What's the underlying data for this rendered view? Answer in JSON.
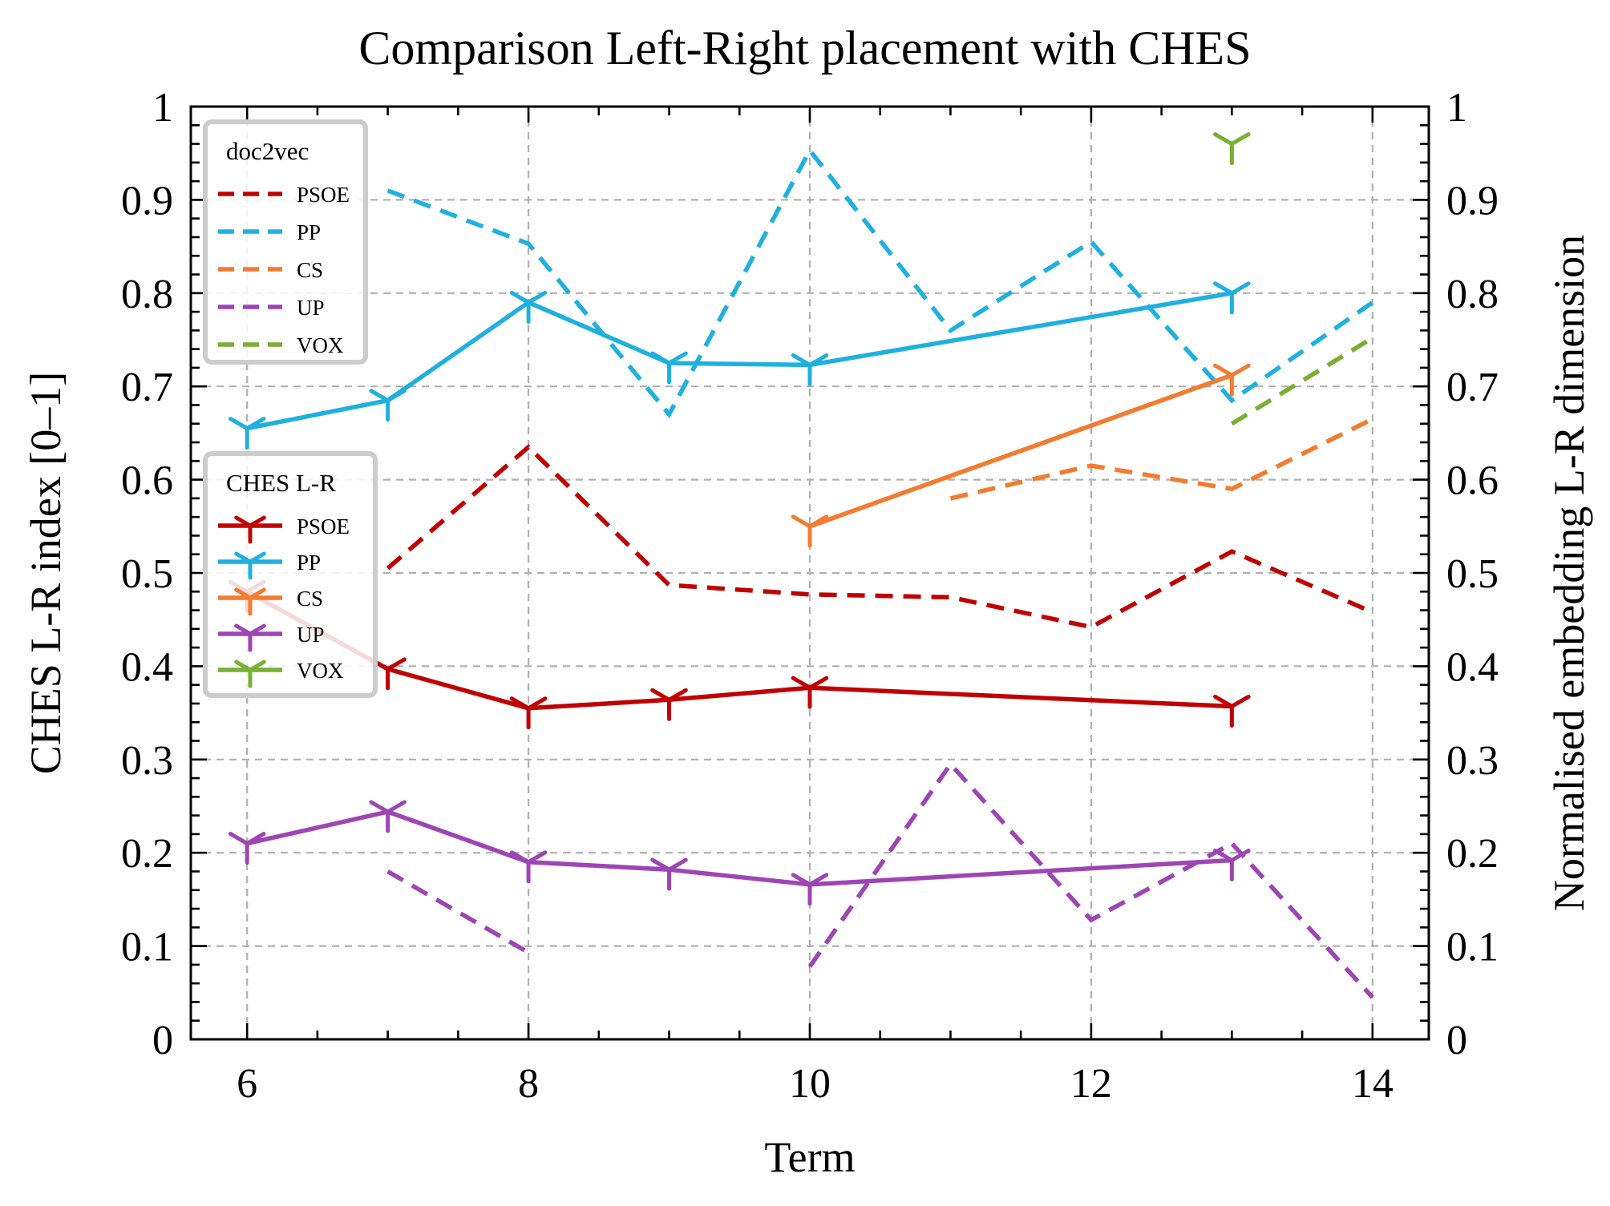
{
  "chart_data": {
    "type": "line",
    "title": "Comparison Left-Right placement with CHES",
    "xlabel": "Term",
    "ylabel": "CHES L-R index [0–1]",
    "ylabel_right": "Normalised embedding L-R dimension",
    "xlim": [
      5.6,
      14.4
    ],
    "ylim": [
      0,
      1
    ],
    "ylim_right": [
      0,
      1
    ],
    "x_ticks": [
      6,
      8,
      10,
      12,
      14
    ],
    "y_ticks": [
      0,
      0.1,
      0.2,
      0.3,
      0.4,
      0.5,
      0.6,
      0.7,
      0.8,
      0.9,
      1
    ],
    "y_tick_labels": [
      "0",
      "0.1",
      "0.2",
      "0.3",
      "0.4",
      "0.5",
      "0.6",
      "0.7",
      "0.8",
      "0.9",
      "1"
    ],
    "x_tick_labels": [
      "6",
      "8",
      "10",
      "12",
      "14"
    ],
    "grid": true,
    "colors": {
      "PSOE": "#c00000",
      "PP": "#1fb0e0",
      "CS": "#f47b30",
      "UP": "#9e45b5",
      "VOX": "#7aaf31"
    },
    "legends": [
      {
        "title": "doc2vec",
        "placement": "top-left",
        "style": "dashed",
        "entries": [
          "PSOE",
          "PP",
          "CS",
          "UP",
          "VOX"
        ]
      },
      {
        "title": "CHES L-R",
        "placement": "center-left",
        "style": "solid-with-markers",
        "entries": [
          "PSOE",
          "PP",
          "CS",
          "UP",
          "VOX"
        ]
      }
    ],
    "series_ches": [
      {
        "name": "PSOE",
        "x": [
          6,
          7,
          8,
          9,
          10,
          13
        ],
        "y": [
          0.48,
          0.397,
          0.355,
          0.364,
          0.377,
          0.357
        ]
      },
      {
        "name": "PP",
        "x": [
          6,
          7,
          8,
          9,
          10,
          13
        ],
        "y": [
          0.655,
          0.685,
          0.79,
          0.725,
          0.723,
          0.8
        ]
      },
      {
        "name": "CS",
        "x": [
          10,
          13
        ],
        "y": [
          0.55,
          0.712
        ]
      },
      {
        "name": "UP",
        "x": [
          6,
          7,
          8,
          9,
          10,
          13
        ],
        "y": [
          0.21,
          0.244,
          0.19,
          0.182,
          0.166,
          0.192
        ]
      },
      {
        "name": "VOX",
        "x": [
          13
        ],
        "y": [
          0.96
        ]
      }
    ],
    "series_doc2vec": [
      {
        "name": "PSOE",
        "segments": [
          {
            "x": [
              7,
              8,
              9,
              10,
              11,
              12,
              13,
              14
            ],
            "y": [
              0.505,
              0.635,
              0.487,
              0.477,
              0.474,
              0.442,
              0.523,
              0.458
            ]
          }
        ]
      },
      {
        "name": "PP",
        "segments": [
          {
            "x": [
              7,
              8,
              9,
              10,
              11,
              12,
              13,
              14
            ],
            "y": [
              0.91,
              0.853,
              0.67,
              0.953,
              0.76,
              0.855,
              0.685,
              0.79
            ]
          }
        ]
      },
      {
        "name": "CS",
        "segments": [
          {
            "x": [
              11,
              12,
              13,
              14
            ],
            "y": [
              0.58,
              0.615,
              0.59,
              0.665
            ]
          }
        ]
      },
      {
        "name": "UP",
        "segments": [
          {
            "x": [
              7,
              8
            ],
            "y": [
              0.18,
              0.093
            ]
          },
          {
            "x": [
              10,
              11,
              12,
              13,
              14
            ],
            "y": [
              0.078,
              0.295,
              0.128,
              0.21,
              0.045
            ]
          }
        ]
      },
      {
        "name": "VOX",
        "segments": [
          {
            "x": [
              13,
              14
            ],
            "y": [
              0.66,
              0.752
            ]
          }
        ]
      }
    ]
  }
}
